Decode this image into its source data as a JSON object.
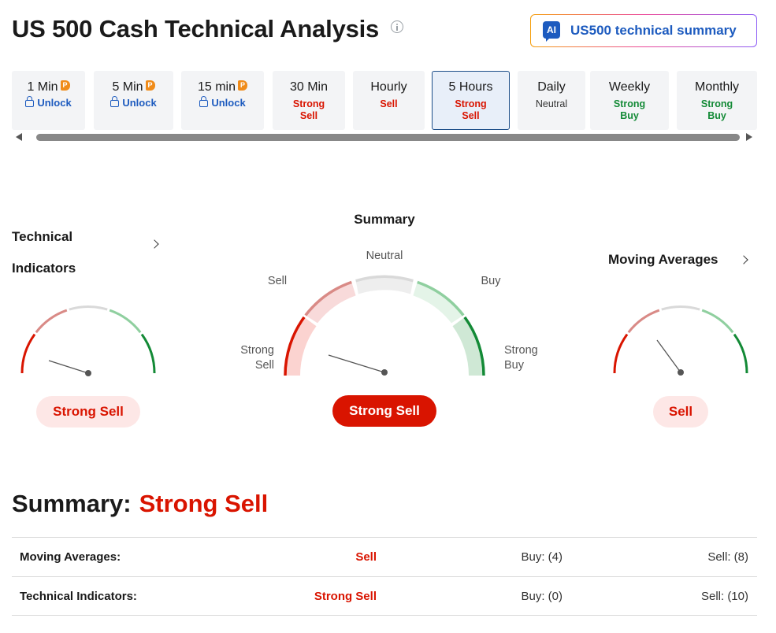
{
  "header": {
    "title": "US 500 Cash Technical Analysis",
    "ai_button_badge": "AI",
    "ai_button_label": "US500 technical summary"
  },
  "timeframes": [
    {
      "name": "1 Min",
      "status": "Unlock",
      "locked": true
    },
    {
      "name": "5 Min",
      "status": "Unlock",
      "locked": true
    },
    {
      "name": "15 min",
      "status": "Unlock",
      "locked": true
    },
    {
      "name": "30 Min",
      "status": "Strong Sell",
      "locked": false
    },
    {
      "name": "Hourly",
      "status": "Sell",
      "locked": false
    },
    {
      "name": "5 Hours",
      "status": "Strong Sell",
      "locked": false,
      "active": true
    },
    {
      "name": "Daily",
      "status": "Neutral",
      "locked": false
    },
    {
      "name": "Weekly",
      "status": "Strong Buy",
      "locked": false
    },
    {
      "name": "Monthly",
      "status": "Strong Buy",
      "locked": false
    }
  ],
  "pro_badge": "P",
  "gauges": {
    "technical_indicators": {
      "title_line1": "Technical",
      "title_line2": "Indicators",
      "value": "Strong Sell"
    },
    "summary": {
      "title": "Summary",
      "value": "Strong Sell",
      "labels": {
        "neutral": "Neutral",
        "sell": "Sell",
        "buy": "Buy",
        "strong_sell": "Strong\nSell",
        "strong_buy": "Strong\nBuy"
      }
    },
    "moving_averages": {
      "title": "Moving Averages",
      "value": "Sell"
    }
  },
  "summary_section": {
    "label": "Summary:",
    "value": "Strong Sell",
    "rows": [
      {
        "label": "Moving Averages:",
        "signal": "Sell",
        "buy": "Buy: (4)",
        "sell": "Sell: (8)"
      },
      {
        "label": "Technical Indicators:",
        "signal": "Strong Sell",
        "buy": "Buy: (0)",
        "sell": "Sell: (10)"
      }
    ]
  },
  "colors": {
    "strong_sell": "#d91400",
    "sell": "#d98a86",
    "neutral": "#d9d9d9",
    "buy": "#8fcf9f",
    "strong_buy": "#138a36",
    "brand_blue": "#1d5bbf"
  }
}
